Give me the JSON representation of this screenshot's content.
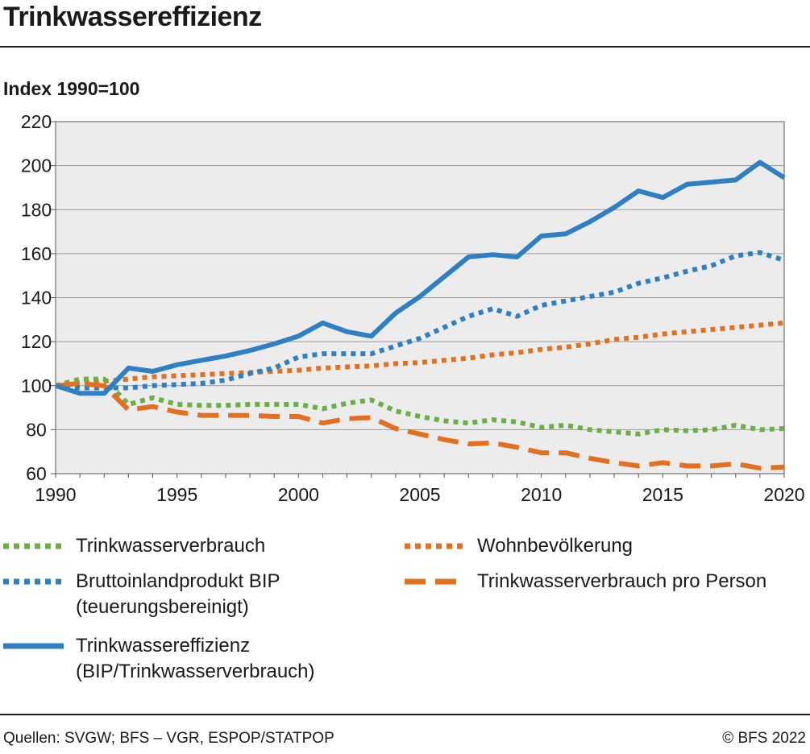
{
  "header": {
    "title": "Trinkwassereffizienz",
    "subtitle": "Index 1990=100"
  },
  "footer": {
    "source": "Quellen: SVGW; BFS – VGR, ESPOP/STATPOP",
    "copyright": "© BFS 2022"
  },
  "chart_data": {
    "type": "line",
    "title": "Trinkwassereffizienz",
    "ylabel": "Index 1990=100",
    "xlim": [
      1990,
      2020
    ],
    "ylim": [
      60,
      220
    ],
    "xticks": [
      1990,
      1995,
      2000,
      2005,
      2010,
      2015,
      2020
    ],
    "yticks": [
      60,
      80,
      100,
      120,
      140,
      160,
      180,
      200,
      220
    ],
    "grid": true,
    "legend_position": "bottom",
    "x": [
      1990,
      1991,
      1992,
      1993,
      1994,
      1995,
      1996,
      1997,
      1998,
      1999,
      2000,
      2001,
      2002,
      2003,
      2004,
      2005,
      2006,
      2007,
      2008,
      2009,
      2010,
      2011,
      2012,
      2013,
      2014,
      2015,
      2016,
      2017,
      2018,
      2019,
      2020
    ],
    "series": [
      {
        "name": "Trinkwasserverbrauch",
        "color": "#6aae45",
        "style": "dotted",
        "values": [
          100,
          103,
          103,
          91.5,
          94.5,
          91.5,
          91,
          91,
          91.5,
          91.5,
          91.5,
          89.5,
          92,
          93.5,
          88.5,
          86,
          84,
          83,
          84.5,
          83.5,
          81,
          82,
          80,
          79,
          78,
          80,
          79.5,
          80,
          82,
          80,
          80.5
        ]
      },
      {
        "name": "Bruttoinlandprodukt BIP",
        "name_line2": "(teuerungsbereinigt)",
        "color": "#2e7fc3",
        "style": "dotted",
        "values": [
          100,
          99,
          99,
          99,
          100,
          100.5,
          101,
          102.5,
          105.5,
          108,
          113,
          114.5,
          114.5,
          114.5,
          118,
          121.5,
          126.5,
          131.5,
          135,
          131.5,
          136.5,
          138.5,
          140.5,
          142.5,
          146.5,
          149,
          152,
          154.5,
          159,
          160.5,
          157
        ]
      },
      {
        "name": "Trinkwassereffizienz",
        "name_line2": "(BIP/Trinkwasserverbrauch)",
        "color": "#2e7fc3",
        "style": "solid",
        "values": [
          100,
          96.5,
          96.5,
          108,
          106.5,
          109.5,
          111.5,
          113.5,
          116,
          119,
          122.5,
          128.5,
          124.5,
          122.5,
          133,
          140.5,
          149.5,
          158.5,
          159.5,
          158.5,
          168,
          169,
          174.5,
          181,
          188.5,
          185.5,
          191.5,
          192.5,
          193.5,
          201.5,
          194.5
        ]
      },
      {
        "name": "Wohnbevölkerung",
        "color": "#e2701e",
        "style": "dotted",
        "values": [
          100,
          101,
          102,
          103,
          104,
          104.5,
          105,
          105.5,
          106,
          106.5,
          107,
          108,
          108.5,
          109,
          110,
          110.5,
          111.5,
          112.5,
          114,
          115,
          116.5,
          117.5,
          119,
          121,
          122,
          123.5,
          124.5,
          125.5,
          126.5,
          127.5,
          128.5
        ]
      },
      {
        "name": "Trinkwasserverbrauch pro Person",
        "color": "#e2701e",
        "style": "dashed",
        "values": [
          100,
          101,
          100,
          89,
          90.5,
          88,
          86.5,
          86.5,
          86.5,
          86,
          86,
          83,
          85,
          85.5,
          80.5,
          78,
          75.5,
          73.5,
          74,
          72,
          69.5,
          69.5,
          67,
          65,
          63.5,
          65,
          63.5,
          63.5,
          64.5,
          62.5,
          63
        ]
      }
    ]
  }
}
